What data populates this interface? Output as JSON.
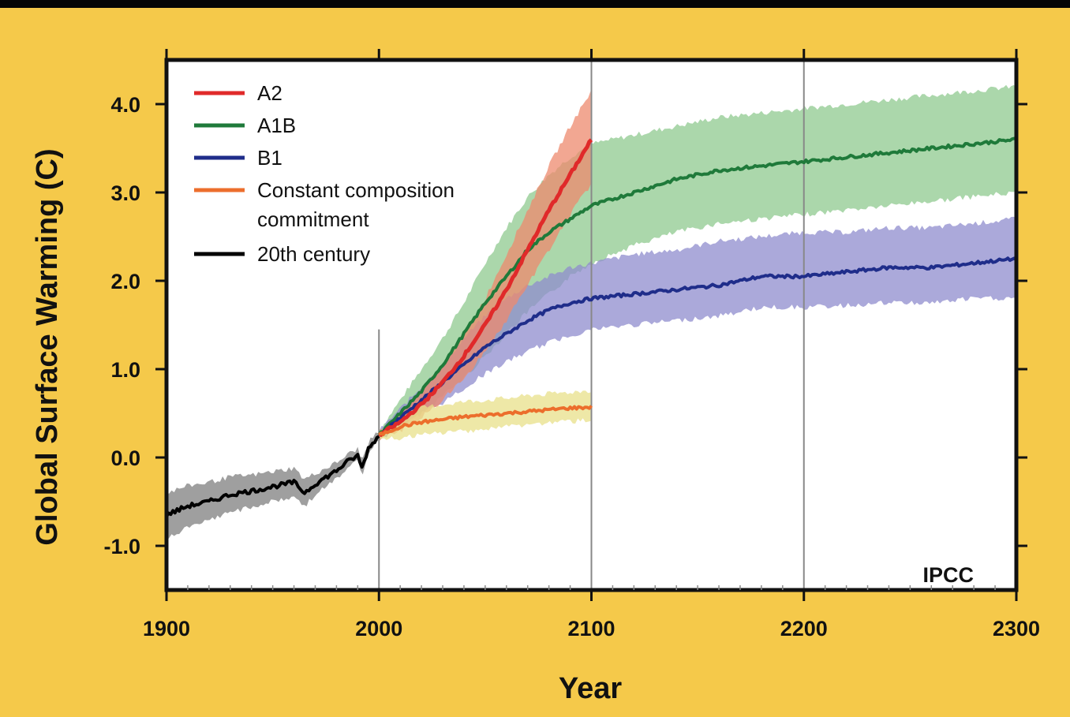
{
  "chart_data": {
    "type": "line",
    "xlabel": "Year",
    "ylabel": "Global Surface Warming (C)",
    "xlim": [
      1900,
      2300
    ],
    "ylim": [
      -1.5,
      4.5
    ],
    "xticks": [
      1900,
      2000,
      2100,
      2200,
      2300
    ],
    "xtick_labels": [
      "1900",
      "2000",
      "2100",
      "2200",
      "2300"
    ],
    "yticks": [
      -1.0,
      0.0,
      1.0,
      2.0,
      3.0,
      4.0
    ],
    "ytick_labels": [
      "-1.0",
      "0.0",
      "1.0",
      "2.0",
      "3.0",
      "4.0"
    ],
    "vertical_lines": [
      2000,
      2100,
      2200
    ],
    "annotation": "IPCC",
    "legend_position": "top-left",
    "grid": false,
    "series": [
      {
        "name": "A2",
        "color": "#e02a2a",
        "band_color": "#ee8a6e",
        "x": [
          2000,
          2010,
          2020,
          2030,
          2040,
          2050,
          2060,
          2070,
          2080,
          2090,
          2100
        ],
        "values": [
          0.25,
          0.4,
          0.6,
          0.85,
          1.15,
          1.5,
          1.9,
          2.35,
          2.8,
          3.2,
          3.6
        ],
        "lower": [
          0.2,
          0.3,
          0.45,
          0.65,
          0.9,
          1.2,
          1.55,
          1.95,
          2.35,
          2.75,
          3.1
        ],
        "upper": [
          0.3,
          0.5,
          0.75,
          1.05,
          1.4,
          1.8,
          2.3,
          2.8,
          3.3,
          3.75,
          4.15
        ]
      },
      {
        "name": "A1B",
        "color": "#1f7a3a",
        "band_color": "#8fc98f",
        "x": [
          2000,
          2010,
          2020,
          2030,
          2040,
          2050,
          2060,
          2070,
          2080,
          2090,
          2100,
          2120,
          2140,
          2160,
          2180,
          2200,
          2220,
          2240,
          2260,
          2280,
          2300
        ],
        "values": [
          0.25,
          0.5,
          0.75,
          1.05,
          1.4,
          1.75,
          2.05,
          2.35,
          2.55,
          2.7,
          2.85,
          3.0,
          3.15,
          3.25,
          3.3,
          3.35,
          3.4,
          3.45,
          3.5,
          3.55,
          3.6
        ],
        "lower": [
          0.2,
          0.35,
          0.5,
          0.7,
          0.9,
          1.15,
          1.4,
          1.65,
          1.85,
          2.05,
          2.2,
          2.4,
          2.55,
          2.65,
          2.7,
          2.75,
          2.8,
          2.85,
          2.9,
          2.95,
          3.0
        ],
        "upper": [
          0.3,
          0.65,
          1.0,
          1.35,
          1.75,
          2.2,
          2.6,
          2.95,
          3.2,
          3.4,
          3.55,
          3.65,
          3.75,
          3.85,
          3.9,
          3.95,
          4.0,
          4.05,
          4.1,
          4.15,
          4.2
        ]
      },
      {
        "name": "B1",
        "color": "#1f2d8a",
        "band_color": "#8f8ccd",
        "x": [
          2000,
          2010,
          2020,
          2030,
          2040,
          2050,
          2060,
          2070,
          2080,
          2090,
          2100,
          2120,
          2140,
          2160,
          2180,
          2200,
          2220,
          2240,
          2260,
          2280,
          2300
        ],
        "values": [
          0.25,
          0.45,
          0.65,
          0.85,
          1.05,
          1.25,
          1.4,
          1.55,
          1.67,
          1.75,
          1.8,
          1.85,
          1.9,
          1.95,
          2.05,
          2.05,
          2.1,
          2.15,
          2.15,
          2.2,
          2.25
        ],
        "lower": [
          0.2,
          0.35,
          0.5,
          0.62,
          0.78,
          0.95,
          1.08,
          1.2,
          1.3,
          1.38,
          1.45,
          1.5,
          1.55,
          1.6,
          1.7,
          1.7,
          1.72,
          1.75,
          1.75,
          1.8,
          1.8
        ],
        "upper": [
          0.3,
          0.55,
          0.8,
          1.05,
          1.35,
          1.6,
          1.8,
          1.95,
          2.05,
          2.15,
          2.2,
          2.3,
          2.35,
          2.45,
          2.5,
          2.55,
          2.55,
          2.6,
          2.6,
          2.65,
          2.7
        ]
      },
      {
        "name": "Constant composition commitment",
        "legend_lines": [
          "Constant composition",
          "commitment"
        ],
        "color": "#ec6e2c",
        "band_color": "#e8e08a",
        "x": [
          2000,
          2010,
          2020,
          2030,
          2040,
          2050,
          2060,
          2070,
          2080,
          2090,
          2100
        ],
        "values": [
          0.25,
          0.35,
          0.4,
          0.43,
          0.46,
          0.48,
          0.5,
          0.52,
          0.54,
          0.56,
          0.57
        ],
        "lower": [
          0.2,
          0.22,
          0.25,
          0.28,
          0.3,
          0.32,
          0.35,
          0.37,
          0.39,
          0.41,
          0.42
        ],
        "upper": [
          0.3,
          0.48,
          0.56,
          0.6,
          0.63,
          0.65,
          0.67,
          0.7,
          0.72,
          0.74,
          0.76
        ]
      },
      {
        "name": "20th century",
        "color": "#000000",
        "band_color": "#8e8e8e",
        "x": [
          1900,
          1910,
          1920,
          1930,
          1940,
          1950,
          1960,
          1965,
          1970,
          1980,
          1985,
          1990,
          1992,
          1995,
          2000
        ],
        "values": [
          -0.65,
          -0.55,
          -0.5,
          -0.42,
          -0.38,
          -0.33,
          -0.28,
          -0.4,
          -0.3,
          -0.15,
          -0.05,
          0.02,
          -0.12,
          0.1,
          0.25
        ],
        "lower": [
          -0.92,
          -0.8,
          -0.72,
          -0.62,
          -0.56,
          -0.5,
          -0.45,
          -0.55,
          -0.42,
          -0.25,
          -0.12,
          -0.05,
          -0.2,
          0.03,
          0.2
        ],
        "upper": [
          -0.4,
          -0.32,
          -0.28,
          -0.22,
          -0.2,
          -0.16,
          -0.12,
          -0.25,
          -0.18,
          -0.06,
          0.03,
          0.1,
          -0.04,
          0.17,
          0.3
        ]
      }
    ]
  }
}
